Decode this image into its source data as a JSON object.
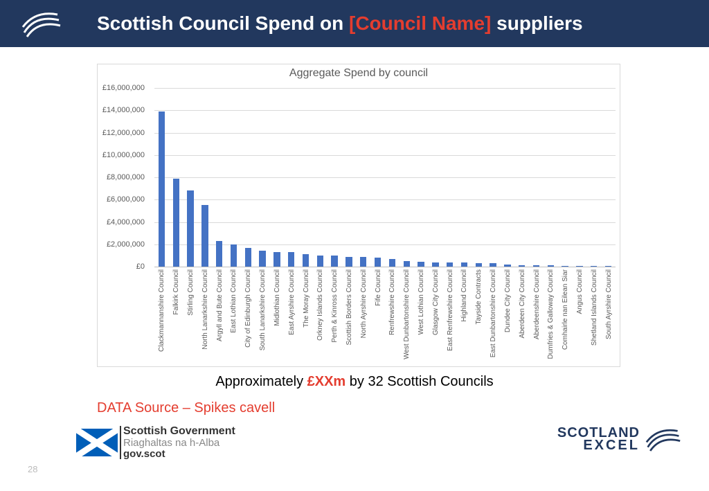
{
  "header": {
    "title_prefix": "Scottish Council Spend on ",
    "title_placeholder": "[Council Name]",
    "title_suffix": " suppliers"
  },
  "chart": {
    "type": "bar",
    "title": "Aggregate Spend by council",
    "title_fontsize": 16,
    "title_color": "#595959",
    "ylim": [
      0,
      16000000
    ],
    "ytick_step": 2000000,
    "y_ticks": [
      {
        "v": 0,
        "label": "£0"
      },
      {
        "v": 2000000,
        "label": "£2,000,000"
      },
      {
        "v": 4000000,
        "label": "£4,000,000"
      },
      {
        "v": 6000000,
        "label": "£6,000,000"
      },
      {
        "v": 8000000,
        "label": "£8,000,000"
      },
      {
        "v": 10000000,
        "label": "£10,000,000"
      },
      {
        "v": 12000000,
        "label": "£12,000,000"
      },
      {
        "v": 14000000,
        "label": "£14,000,000"
      },
      {
        "v": 16000000,
        "label": "£16,000,000"
      }
    ],
    "bar_color": "#4472c4",
    "grid_color": "#d9d9d9",
    "axis_color": "#bfbfbf",
    "background_color": "#ffffff",
    "label_fontsize": 10,
    "label_color": "#595959",
    "bar_width_ratio": 0.45,
    "categories": [
      "Clackmannanshire Council",
      "Falkirk Council",
      "Stirling Council",
      "North Lanarkshire Council",
      "Argyll and Bute Council",
      "East Lothian Council",
      "City of Edinburgh Council",
      "South Lanarkshire Council",
      "Midlothian Council",
      "East Ayrshire Council",
      "The Moray Council",
      "Orkney Islands Council",
      "Perth & Kinross Council",
      "Scottish Borders Council",
      "North Ayrshire Council",
      "Fife Council",
      "Renfrewshire Council",
      "West Dunbartonshire Council",
      "West Lothian Council",
      "Glasgow City Council",
      "East Renfrewshire Council",
      "Highland Council",
      "Tayside Contracts",
      "East Dunbartonshire Council",
      "Dundee City Council",
      "Aberdeen City Council",
      "Aberdeenshire Council",
      "Dumfries & Galloway Council",
      "Comhairle nan Eilean Siar",
      "Angus Council",
      "Shetland Islands Council",
      "South Ayrshire Council"
    ],
    "values": [
      13900000,
      7900000,
      6800000,
      5500000,
      2300000,
      2000000,
      1700000,
      1400000,
      1300000,
      1300000,
      1100000,
      1000000,
      1000000,
      900000,
      900000,
      800000,
      700000,
      500000,
      450000,
      400000,
      400000,
      350000,
      300000,
      300000,
      200000,
      150000,
      120000,
      100000,
      80000,
      70000,
      50000,
      40000
    ]
  },
  "caption": {
    "prefix": "Approximately ",
    "highlight": "£XXm",
    "suffix": " by 32 Scottish Councils"
  },
  "data_source": "DATA Source – Spikes cavell",
  "footer": {
    "sg_line1": "Scottish Government",
    "sg_line2": "Riaghaltas na h-Alba",
    "sg_line3": "gov.scot",
    "se_line1": "SCOTLAND",
    "se_line2": "EXCEL"
  },
  "page_number": "28",
  "colors": {
    "header_bg": "#22385e",
    "accent_red": "#e43d2f",
    "saltire_blue": "#005eb8"
  }
}
